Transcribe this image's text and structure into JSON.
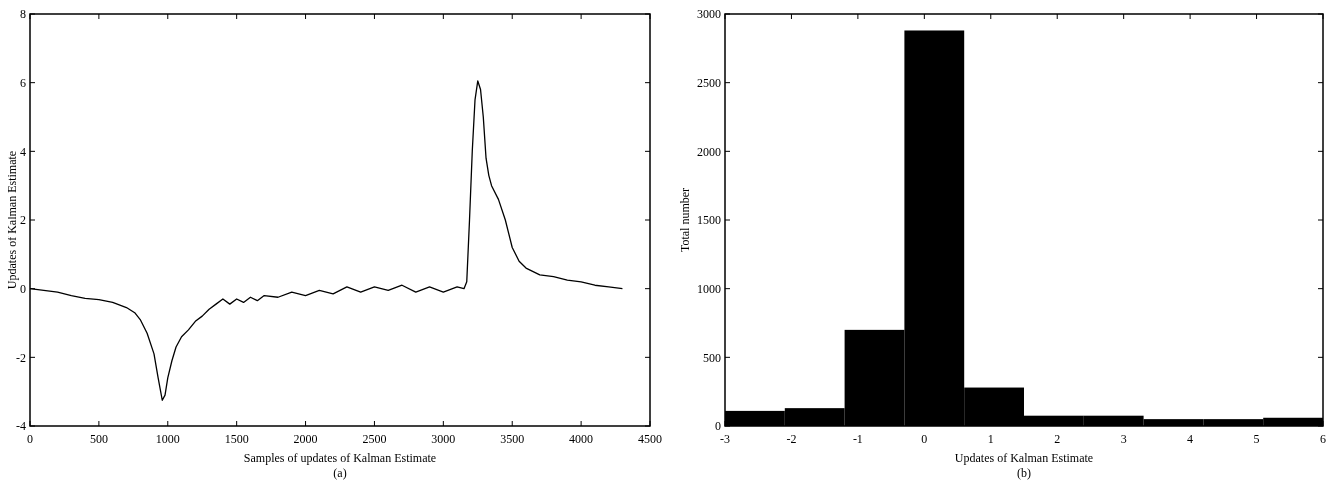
{
  "chart_data": [
    {
      "type": "line",
      "xlabel": "Samples of updates of Kalman Estimate",
      "ylabel": "Updates of Kalman Estimate",
      "annotations": [
        "(a)"
      ],
      "x": [
        0,
        100,
        200,
        300,
        400,
        500,
        600,
        700,
        760,
        800,
        850,
        900,
        930,
        960,
        980,
        1000,
        1030,
        1060,
        1100,
        1150,
        1200,
        1250,
        1300,
        1350,
        1400,
        1450,
        1500,
        1550,
        1600,
        1650,
        1700,
        1800,
        1900,
        2000,
        2100,
        2200,
        2300,
        2400,
        2500,
        2600,
        2700,
        2800,
        2900,
        3000,
        3100,
        3150,
        3170,
        3190,
        3210,
        3230,
        3250,
        3270,
        3290,
        3310,
        3330,
        3350,
        3400,
        3450,
        3500,
        3550,
        3600,
        3700,
        3800,
        3900,
        4000,
        4100,
        4200,
        4300
      ],
      "series": [
        {
          "color": "#000000",
          "values": [
            0,
            -0.05,
            -0.1,
            -0.2,
            -0.28,
            -0.32,
            -0.4,
            -0.55,
            -0.7,
            -0.9,
            -1.3,
            -1.9,
            -2.6,
            -3.25,
            -3.1,
            -2.6,
            -2.1,
            -1.7,
            -1.4,
            -1.2,
            -0.95,
            -0.8,
            -0.6,
            -0.45,
            -0.3,
            -0.45,
            -0.3,
            -0.4,
            -0.25,
            -0.35,
            -0.2,
            -0.25,
            -0.1,
            -0.2,
            -0.05,
            -0.15,
            0.05,
            -0.1,
            0.05,
            -0.05,
            0.1,
            -0.1,
            0.05,
            -0.1,
            0.05,
            0,
            0.2,
            2,
            4,
            5.5,
            6.05,
            5.8,
            5,
            3.8,
            3.3,
            3,
            2.6,
            2,
            1.2,
            0.8,
            0.6,
            0.4,
            0.35,
            0.25,
            0.2,
            0.1,
            0.05,
            0
          ]
        }
      ],
      "xlim": [
        0,
        4500
      ],
      "xticks": [
        0,
        500,
        1000,
        1500,
        2000,
        2500,
        3000,
        3500,
        4000,
        4500
      ],
      "ylim": [
        -4,
        8
      ],
      "yticks": [
        -4,
        -2,
        0,
        2,
        4,
        6,
        8
      ],
      "grid": false,
      "marker": "none",
      "line_style": "solid"
    },
    {
      "type": "histogram",
      "xlabel": "Updates of Kalman Estimate",
      "ylabel": "Total number",
      "annotations": [
        "(b)"
      ],
      "color": "#000000",
      "bins": [
        -3,
        -2.1,
        -1.2,
        -0.3,
        0.6,
        1.5,
        2.4,
        3.3,
        4.2,
        5.1,
        6
      ],
      "values": [
        110,
        130,
        700,
        2880,
        280,
        75,
        75,
        50,
        50,
        60
      ],
      "xlim": [
        -3,
        6
      ],
      "xticks": [
        -3,
        -2,
        -1,
        0,
        1,
        2,
        3,
        4,
        5,
        6
      ],
      "ylim": [
        0,
        3000
      ],
      "yticks": [
        0,
        500,
        1000,
        1500,
        2000,
        2500,
        3000
      ],
      "grid": false
    }
  ]
}
